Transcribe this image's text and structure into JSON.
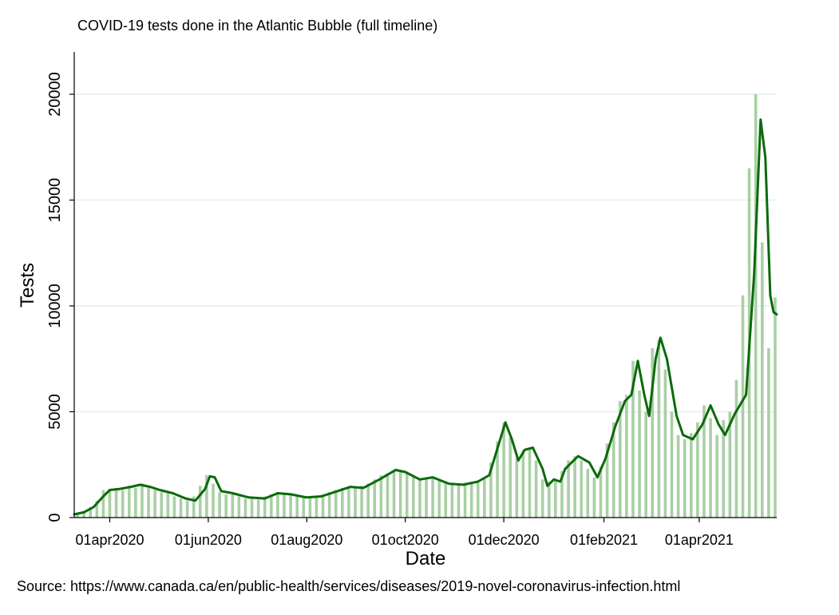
{
  "chart_data": {
    "type": "bar",
    "title": "COVID-19 tests done in the Atlantic Bubble (full timeline)",
    "xlabel": "Date",
    "ylabel": "Tests",
    "source": "Source: https://www.canada.ca/en/public-health/services/diseases/2019-novel-coronavirus-infection.html",
    "x_range": [
      "2020-03-10",
      "2021-05-19"
    ],
    "ylim": [
      0,
      22000
    ],
    "y_ticks": [
      0,
      5000,
      10000,
      15000,
      20000
    ],
    "x_ticks": [
      {
        "date": "2020-04-01",
        "label": "01apr2020"
      },
      {
        "date": "2020-06-01",
        "label": "01jun2020"
      },
      {
        "date": "2020-08-01",
        "label": "01aug2020"
      },
      {
        "date": "2020-10-01",
        "label": "01oct2020"
      },
      {
        "date": "2020-12-01",
        "label": "01dec2020"
      },
      {
        "date": "2021-02-01",
        "label": "01feb2021"
      },
      {
        "date": "2021-04-01",
        "label": "01apr2021"
      }
    ],
    "grid": "horizontal",
    "legend": "none",
    "series": [
      {
        "kind": "bar",
        "color": "#a9cfa4",
        "points": [
          [
            "2020-03-12",
            200
          ],
          [
            "2020-03-16",
            300
          ],
          [
            "2020-03-20",
            500
          ],
          [
            "2020-03-24",
            800
          ],
          [
            "2020-03-28",
            1300
          ],
          [
            "2020-04-01",
            1300
          ],
          [
            "2020-04-05",
            1400
          ],
          [
            "2020-04-09",
            1300
          ],
          [
            "2020-04-13",
            1500
          ],
          [
            "2020-04-17",
            1400
          ],
          [
            "2020-04-21",
            1600
          ],
          [
            "2020-04-25",
            1400
          ],
          [
            "2020-04-29",
            1300
          ],
          [
            "2020-05-03",
            1200
          ],
          [
            "2020-05-07",
            1200
          ],
          [
            "2020-05-11",
            1000
          ],
          [
            "2020-05-15",
            900
          ],
          [
            "2020-05-19",
            800
          ],
          [
            "2020-05-23",
            1000
          ],
          [
            "2020-05-27",
            1500
          ],
          [
            "2020-05-31",
            2000
          ],
          [
            "2020-06-04",
            1600
          ],
          [
            "2020-06-08",
            1200
          ],
          [
            "2020-06-12",
            1100
          ],
          [
            "2020-06-16",
            1100
          ],
          [
            "2020-06-20",
            1000
          ],
          [
            "2020-06-24",
            900
          ],
          [
            "2020-06-28",
            900
          ],
          [
            "2020-07-02",
            850
          ],
          [
            "2020-07-06",
            1000
          ],
          [
            "2020-07-10",
            1100
          ],
          [
            "2020-07-14",
            1200
          ],
          [
            "2020-07-18",
            1150
          ],
          [
            "2020-07-22",
            1100
          ],
          [
            "2020-07-26",
            1000
          ],
          [
            "2020-07-30",
            950
          ],
          [
            "2020-08-03",
            950
          ],
          [
            "2020-08-07",
            1000
          ],
          [
            "2020-08-11",
            1100
          ],
          [
            "2020-08-15",
            1200
          ],
          [
            "2020-08-19",
            1300
          ],
          [
            "2020-08-23",
            1400
          ],
          [
            "2020-08-27",
            1450
          ],
          [
            "2020-08-31",
            1400
          ],
          [
            "2020-09-04",
            1500
          ],
          [
            "2020-09-08",
            1600
          ],
          [
            "2020-09-12",
            1800
          ],
          [
            "2020-09-16",
            2000
          ],
          [
            "2020-09-20",
            2100
          ],
          [
            "2020-09-24",
            2200
          ],
          [
            "2020-09-28",
            2200
          ],
          [
            "2020-10-02",
            2100
          ],
          [
            "2020-10-06",
            1900
          ],
          [
            "2020-10-10",
            1800
          ],
          [
            "2020-10-14",
            1850
          ],
          [
            "2020-10-18",
            1900
          ],
          [
            "2020-10-22",
            1800
          ],
          [
            "2020-10-26",
            1700
          ],
          [
            "2020-10-30",
            1600
          ],
          [
            "2020-11-03",
            1600
          ],
          [
            "2020-11-07",
            1650
          ],
          [
            "2020-11-11",
            1700
          ],
          [
            "2020-11-15",
            1650
          ],
          [
            "2020-11-19",
            1900
          ],
          [
            "2020-11-23",
            2600
          ],
          [
            "2020-11-27",
            3600
          ],
          [
            "2020-12-01",
            4500
          ],
          [
            "2020-12-05",
            3800
          ],
          [
            "2020-12-09",
            2800
          ],
          [
            "2020-12-13",
            3200
          ],
          [
            "2020-12-17",
            3300
          ],
          [
            "2020-12-21",
            2700
          ],
          [
            "2020-12-25",
            1800
          ],
          [
            "2020-12-29",
            1700
          ],
          [
            "2021-01-02",
            1800
          ],
          [
            "2021-01-06",
            2200
          ],
          [
            "2021-01-10",
            2700
          ],
          [
            "2021-01-14",
            2900
          ],
          [
            "2021-01-18",
            2700
          ],
          [
            "2021-01-22",
            2300
          ],
          [
            "2021-01-26",
            1900
          ],
          [
            "2021-01-30",
            2400
          ],
          [
            "2021-02-03",
            3500
          ],
          [
            "2021-02-07",
            4500
          ],
          [
            "2021-02-11",
            5500
          ],
          [
            "2021-02-15",
            5800
          ],
          [
            "2021-02-19",
            7400
          ],
          [
            "2021-02-23",
            6000
          ],
          [
            "2021-02-27",
            5000
          ],
          [
            "2021-03-03",
            8000
          ],
          [
            "2021-03-07",
            8400
          ],
          [
            "2021-03-11",
            7000
          ],
          [
            "2021-03-15",
            5000
          ],
          [
            "2021-03-19",
            3900
          ],
          [
            "2021-03-23",
            3700
          ],
          [
            "2021-03-27",
            4000
          ],
          [
            "2021-03-31",
            4500
          ],
          [
            "2021-04-04",
            5300
          ],
          [
            "2021-04-08",
            4700
          ],
          [
            "2021-04-12",
            3900
          ],
          [
            "2021-04-16",
            4600
          ],
          [
            "2021-04-20",
            5000
          ],
          [
            "2021-04-24",
            6500
          ],
          [
            "2021-04-28",
            10500
          ],
          [
            "2021-05-02",
            16500
          ],
          [
            "2021-05-06",
            20000
          ],
          [
            "2021-05-10",
            13000
          ],
          [
            "2021-05-14",
            8000
          ],
          [
            "2021-05-18",
            10400
          ]
        ]
      },
      {
        "kind": "line",
        "color": "#0a6a0a",
        "points": [
          [
            "2020-03-10",
            150
          ],
          [
            "2020-03-16",
            250
          ],
          [
            "2020-03-22",
            500
          ],
          [
            "2020-03-28",
            1000
          ],
          [
            "2020-04-01",
            1300
          ],
          [
            "2020-04-07",
            1350
          ],
          [
            "2020-04-14",
            1450
          ],
          [
            "2020-04-20",
            1550
          ],
          [
            "2020-04-26",
            1450
          ],
          [
            "2020-05-02",
            1300
          ],
          [
            "2020-05-10",
            1150
          ],
          [
            "2020-05-18",
            900
          ],
          [
            "2020-05-24",
            800
          ],
          [
            "2020-05-30",
            1350
          ],
          [
            "2020-06-02",
            1950
          ],
          [
            "2020-06-05",
            1900
          ],
          [
            "2020-06-09",
            1250
          ],
          [
            "2020-06-16",
            1150
          ],
          [
            "2020-06-26",
            950
          ],
          [
            "2020-07-06",
            900
          ],
          [
            "2020-07-14",
            1150
          ],
          [
            "2020-07-22",
            1100
          ],
          [
            "2020-08-01",
            950
          ],
          [
            "2020-08-10",
            1000
          ],
          [
            "2020-08-20",
            1250
          ],
          [
            "2020-08-28",
            1450
          ],
          [
            "2020-09-05",
            1400
          ],
          [
            "2020-09-15",
            1800
          ],
          [
            "2020-09-25",
            2250
          ],
          [
            "2020-10-01",
            2150
          ],
          [
            "2020-10-10",
            1800
          ],
          [
            "2020-10-18",
            1900
          ],
          [
            "2020-10-28",
            1600
          ],
          [
            "2020-11-06",
            1550
          ],
          [
            "2020-11-15",
            1700
          ],
          [
            "2020-11-22",
            2000
          ],
          [
            "2020-11-28",
            3500
          ],
          [
            "2020-12-02",
            4500
          ],
          [
            "2020-12-06",
            3700
          ],
          [
            "2020-12-10",
            2700
          ],
          [
            "2020-12-14",
            3200
          ],
          [
            "2020-12-19",
            3300
          ],
          [
            "2020-12-25",
            2300
          ],
          [
            "2020-12-28",
            1500
          ],
          [
            "2021-01-01",
            1800
          ],
          [
            "2021-01-05",
            1700
          ],
          [
            "2021-01-08",
            2300
          ],
          [
            "2021-01-16",
            2900
          ],
          [
            "2021-01-23",
            2600
          ],
          [
            "2021-01-28",
            1900
          ],
          [
            "2021-02-02",
            2800
          ],
          [
            "2021-02-08",
            4300
          ],
          [
            "2021-02-14",
            5500
          ],
          [
            "2021-02-18",
            5800
          ],
          [
            "2021-02-22",
            7400
          ],
          [
            "2021-02-26",
            5800
          ],
          [
            "2021-03-01",
            4800
          ],
          [
            "2021-03-05",
            7500
          ],
          [
            "2021-03-08",
            8500
          ],
          [
            "2021-03-12",
            7500
          ],
          [
            "2021-03-18",
            4800
          ],
          [
            "2021-03-22",
            3900
          ],
          [
            "2021-03-28",
            3700
          ],
          [
            "2021-04-03",
            4400
          ],
          [
            "2021-04-08",
            5300
          ],
          [
            "2021-04-13",
            4400
          ],
          [
            "2021-04-17",
            3900
          ],
          [
            "2021-04-23",
            4900
          ],
          [
            "2021-04-30",
            5800
          ],
          [
            "2021-05-05",
            11500
          ],
          [
            "2021-05-09",
            18800
          ],
          [
            "2021-05-12",
            17000
          ],
          [
            "2021-05-15",
            10500
          ],
          [
            "2021-05-17",
            9700
          ],
          [
            "2021-05-19",
            9600
          ]
        ]
      }
    ]
  }
}
